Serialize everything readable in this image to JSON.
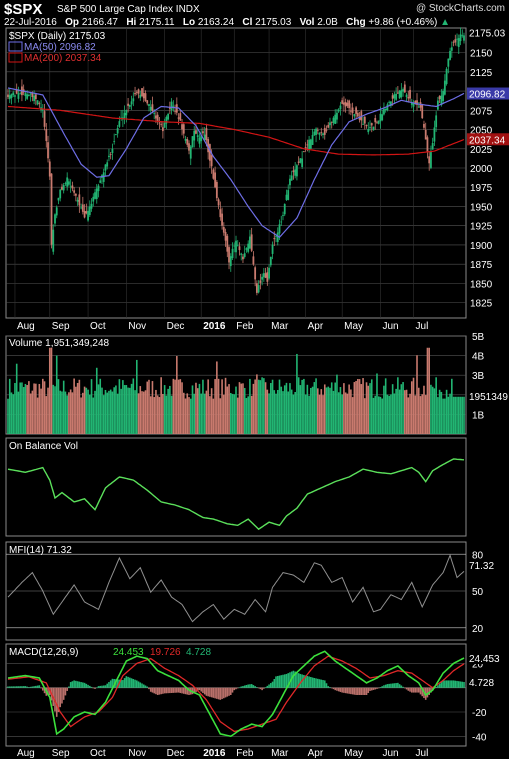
{
  "header": {
    "ticker": "$SPX",
    "name": "S&P 500 Large Cap Index",
    "exchange": "INDX",
    "watermark": "@ StockCharts.com",
    "date": "22-Jul-2016",
    "op_label": "Op",
    "op": "2166.47",
    "hi_label": "Hi",
    "hi": "2175.11",
    "lo_label": "Lo",
    "lo": "2163.24",
    "cl_label": "Cl",
    "cl": "2175.03",
    "vol_label": "Vol",
    "vol": "2.0B",
    "chg_label": "Chg",
    "chg": "+9.86 (+0.46%)",
    "chg_arrow": "▲"
  },
  "colors": {
    "up": "#22b573",
    "down": "#c97a6e",
    "ma50": "#6e6ee6",
    "ma200": "#d21414",
    "obv": "#5be05b",
    "mfi": "#909090",
    "macd": "#3ce03c",
    "signal": "#e02828",
    "hist": "#b9706a"
  },
  "chart_data": [
    {
      "type": "candlestick",
      "panel": "price",
      "legend": [
        "$SPX (Daily) 2175.03",
        "MA(50) 2096.82",
        "MA(200) 2037.34"
      ],
      "ylim": [
        1805,
        2182
      ],
      "yticks": [
        1825,
        1850,
        1875,
        1900,
        1925,
        1950,
        1975,
        2000,
        2025,
        2050,
        2075,
        2100,
        2125,
        2150
      ],
      "last_price_label": "2175.03",
      "ma50_label": "2096.82",
      "ma200_label": "2037.34",
      "x_labels": [
        "Aug",
        "Sep",
        "Oct",
        "Nov",
        "Dec",
        "2016",
        "Feb",
        "Mar",
        "Apr",
        "May",
        "Jun",
        "Jul"
      ],
      "close_keypoints": [
        [
          0,
          2095
        ],
        [
          10,
          2098
        ],
        [
          16,
          2090
        ],
        [
          20,
          2075
        ],
        [
          24,
          1990
        ],
        [
          25,
          1900
        ],
        [
          27,
          1940
        ],
        [
          30,
          1970
        ],
        [
          34,
          1985
        ],
        [
          39,
          1965
        ],
        [
          44,
          1935
        ],
        [
          49,
          1960
        ],
        [
          54,
          1990
        ],
        [
          59,
          2020
        ],
        [
          64,
          2060
        ],
        [
          69,
          2080
        ],
        [
          74,
          2100
        ],
        [
          79,
          2090
        ],
        [
          84,
          2070
        ],
        [
          89,
          2050
        ],
        [
          94,
          2085
        ],
        [
          99,
          2060
        ],
        [
          104,
          2020
        ],
        [
          107,
          2050
        ],
        [
          109,
          2040
        ],
        [
          113,
          2045
        ],
        [
          117,
          2000
        ],
        [
          121,
          1950
        ],
        [
          124,
          1915
        ],
        [
          127,
          1880
        ],
        [
          131,
          1905
        ],
        [
          135,
          1880
        ],
        [
          139,
          1910
        ],
        [
          143,
          1840
        ],
        [
          147,
          1865
        ],
        [
          149,
          1852
        ],
        [
          152,
          1900
        ],
        [
          157,
          1930
        ],
        [
          162,
          1985
        ],
        [
          167,
          2005
        ],
        [
          172,
          2030
        ],
        [
          177,
          2050
        ],
        [
          182,
          2045
        ],
        [
          187,
          2065
        ],
        [
          192,
          2085
        ],
        [
          197,
          2075
        ],
        [
          202,
          2065
        ],
        [
          207,
          2050
        ],
        [
          212,
          2060
        ],
        [
          217,
          2080
        ],
        [
          222,
          2095
        ],
        [
          227,
          2105
        ],
        [
          232,
          2085
        ],
        [
          237,
          2080
        ],
        [
          240,
          2037
        ],
        [
          242,
          2005
        ],
        [
          244,
          2035
        ],
        [
          247,
          2085
        ],
        [
          250,
          2100
        ],
        [
          252,
          2130
        ],
        [
          254,
          2155
        ],
        [
          256,
          2163
        ],
        [
          258,
          2166
        ],
        [
          260,
          2173
        ],
        [
          262,
          2175
        ]
      ],
      "ma50_keypoints": [
        [
          0,
          2104
        ],
        [
          20,
          2095
        ],
        [
          32,
          2045
        ],
        [
          42,
          2005
        ],
        [
          51,
          1988
        ],
        [
          58,
          1990
        ],
        [
          68,
          2025
        ],
        [
          78,
          2065
        ],
        [
          88,
          2080
        ],
        [
          98,
          2078
        ],
        [
          108,
          2055
        ],
        [
          118,
          2015
        ],
        [
          128,
          1985
        ],
        [
          138,
          1950
        ],
        [
          146,
          1925
        ],
        [
          156,
          1910
        ],
        [
          166,
          1935
        ],
        [
          176,
          1985
        ],
        [
          186,
          2030
        ],
        [
          196,
          2060
        ],
        [
          206,
          2070
        ],
        [
          216,
          2078
        ],
        [
          226,
          2088
        ],
        [
          236,
          2083
        ],
        [
          246,
          2080
        ],
        [
          256,
          2090
        ],
        [
          262,
          2097
        ]
      ],
      "ma200_keypoints": [
        [
          0,
          2080
        ],
        [
          30,
          2075
        ],
        [
          60,
          2065
        ],
        [
          90,
          2060
        ],
        [
          110,
          2058
        ],
        [
          130,
          2050
        ],
        [
          150,
          2040
        ],
        [
          170,
          2025
        ],
        [
          190,
          2018
        ],
        [
          210,
          2017
        ],
        [
          230,
          2018
        ],
        [
          245,
          2022
        ],
        [
          262,
          2037
        ]
      ]
    },
    {
      "type": "bar",
      "panel": "volume",
      "legend": "Volume 1,951,349,248",
      "ylim": [
        0,
        5.0
      ],
      "ytick_labels": [
        "1B",
        "2B",
        "3B",
        "4B",
        "5B"
      ],
      "yticks": [
        1,
        2,
        3,
        4,
        5
      ],
      "last_value_label": "1951349",
      "unit": "billions"
    },
    {
      "type": "line",
      "panel": "obv",
      "legend": "On Balance Vol",
      "keypoints": [
        [
          0,
          82
        ],
        [
          10,
          78
        ],
        [
          20,
          84
        ],
        [
          24,
          68
        ],
        [
          27,
          45
        ],
        [
          31,
          52
        ],
        [
          38,
          40
        ],
        [
          44,
          44
        ],
        [
          50,
          30
        ],
        [
          56,
          58
        ],
        [
          64,
          72
        ],
        [
          72,
          68
        ],
        [
          80,
          55
        ],
        [
          88,
          40
        ],
        [
          96,
          36
        ],
        [
          104,
          30
        ],
        [
          112,
          20
        ],
        [
          118,
          18
        ],
        [
          126,
          12
        ],
        [
          132,
          10
        ],
        [
          138,
          18
        ],
        [
          144,
          5
        ],
        [
          150,
          14
        ],
        [
          156,
          10
        ],
        [
          160,
          22
        ],
        [
          166,
          32
        ],
        [
          172,
          50
        ],
        [
          180,
          58
        ],
        [
          188,
          66
        ],
        [
          196,
          72
        ],
        [
          204,
          82
        ],
        [
          212,
          78
        ],
        [
          220,
          76
        ],
        [
          226,
          80
        ],
        [
          232,
          84
        ],
        [
          236,
          78
        ],
        [
          240,
          66
        ],
        [
          244,
          80
        ],
        [
          250,
          88
        ],
        [
          256,
          95
        ],
        [
          262,
          94
        ]
      ]
    },
    {
      "type": "line",
      "panel": "mfi",
      "legend": "MFI(14) 71.32",
      "ylim": [
        10,
        90
      ],
      "yticks": [
        20,
        50,
        80
      ],
      "reference_lines": [
        20,
        80
      ],
      "last_value_label": "71.32",
      "keypoints": [
        [
          0,
          50
        ],
        [
          8,
          62
        ],
        [
          14,
          70
        ],
        [
          20,
          55
        ],
        [
          26,
          36
        ],
        [
          32,
          48
        ],
        [
          38,
          60
        ],
        [
          44,
          46
        ],
        [
          52,
          40
        ],
        [
          58,
          62
        ],
        [
          64,
          82
        ],
        [
          70,
          65
        ],
        [
          76,
          74
        ],
        [
          82,
          54
        ],
        [
          88,
          64
        ],
        [
          94,
          50
        ],
        [
          100,
          44
        ],
        [
          106,
          30
        ],
        [
          112,
          38
        ],
        [
          118,
          44
        ],
        [
          124,
          32
        ],
        [
          130,
          40
        ],
        [
          136,
          36
        ],
        [
          142,
          48
        ],
        [
          148,
          38
        ],
        [
          152,
          58
        ],
        [
          158,
          70
        ],
        [
          164,
          68
        ],
        [
          170,
          62
        ],
        [
          176,
          78
        ],
        [
          180,
          76
        ],
        [
          186,
          62
        ],
        [
          192,
          66
        ],
        [
          198,
          46
        ],
        [
          204,
          58
        ],
        [
          210,
          38
        ],
        [
          214,
          40
        ],
        [
          220,
          52
        ],
        [
          226,
          48
        ],
        [
          232,
          62
        ],
        [
          238,
          42
        ],
        [
          244,
          60
        ],
        [
          250,
          70
        ],
        [
          254,
          84
        ],
        [
          258,
          66
        ],
        [
          262,
          71
        ]
      ]
    },
    {
      "type": "line+bar",
      "panel": "macd",
      "legend": [
        "MACD(12,26,9)",
        "24.453",
        "19.726",
        "4.728"
      ],
      "ylim": [
        -48,
        36
      ],
      "yticks": [
        -40,
        -20,
        20
      ],
      "last_value_labels": [
        "24.453",
        "4.728"
      ],
      "macd_keypoints": [
        [
          0,
          8
        ],
        [
          10,
          10
        ],
        [
          18,
          8
        ],
        [
          24,
          -8
        ],
        [
          28,
          -38
        ],
        [
          32,
          -34
        ],
        [
          38,
          -24
        ],
        [
          44,
          -20
        ],
        [
          50,
          -22
        ],
        [
          56,
          -12
        ],
        [
          62,
          5
        ],
        [
          68,
          22
        ],
        [
          74,
          26
        ],
        [
          80,
          24
        ],
        [
          86,
          14
        ],
        [
          92,
          10
        ],
        [
          98,
          6
        ],
        [
          104,
          -2
        ],
        [
          110,
          -6
        ],
        [
          116,
          -22
        ],
        [
          122,
          -38
        ],
        [
          128,
          -40
        ],
        [
          134,
          -34
        ],
        [
          140,
          -30
        ],
        [
          146,
          -32
        ],
        [
          152,
          -22
        ],
        [
          158,
          -6
        ],
        [
          164,
          10
        ],
        [
          170,
          18
        ],
        [
          176,
          26
        ],
        [
          182,
          30
        ],
        [
          188,
          22
        ],
        [
          194,
          16
        ],
        [
          200,
          10
        ],
        [
          206,
          4
        ],
        [
          212,
          8
        ],
        [
          218,
          14
        ],
        [
          224,
          18
        ],
        [
          230,
          10
        ],
        [
          236,
          4
        ],
        [
          240,
          -6
        ],
        [
          244,
          -2
        ],
        [
          250,
          12
        ],
        [
          256,
          20
        ],
        [
          262,
          24.45
        ]
      ],
      "signal_keypoints": [
        [
          0,
          7
        ],
        [
          12,
          9
        ],
        [
          22,
          4
        ],
        [
          30,
          -20
        ],
        [
          36,
          -32
        ],
        [
          44,
          -24
        ],
        [
          52,
          -20
        ],
        [
          60,
          -8
        ],
        [
          66,
          10
        ],
        [
          74,
          20
        ],
        [
          82,
          24
        ],
        [
          90,
          16
        ],
        [
          98,
          10
        ],
        [
          106,
          2
        ],
        [
          114,
          -10
        ],
        [
          122,
          -28
        ],
        [
          130,
          -36
        ],
        [
          138,
          -34
        ],
        [
          146,
          -30
        ],
        [
          154,
          -26
        ],
        [
          160,
          -12
        ],
        [
          168,
          4
        ],
        [
          176,
          18
        ],
        [
          184,
          26
        ],
        [
          192,
          22
        ],
        [
          200,
          16
        ],
        [
          208,
          8
        ],
        [
          216,
          10
        ],
        [
          224,
          14
        ],
        [
          232,
          12
        ],
        [
          238,
          6
        ],
        [
          244,
          0
        ],
        [
          250,
          6
        ],
        [
          256,
          14
        ],
        [
          262,
          19.73
        ]
      ]
    }
  ]
}
